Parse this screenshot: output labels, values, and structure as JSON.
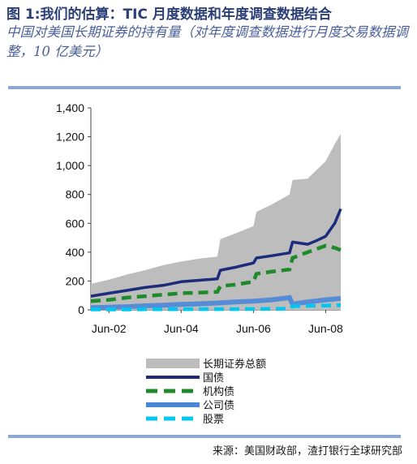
{
  "title": "图 1:我们的估算：TIC 月度数据和年度调查数据结合",
  "subtitle": "中国对美国长期证券的持有量（对年度调查数据进行月度交易数据调整，10 亿美元）",
  "source": "来源：美国财政部，渣打银行全球研究部",
  "chart_data": {
    "type": "area",
    "x_start": "2001-12",
    "x_end": "2008-11",
    "x_ticks": [
      "Jun-02",
      "Jun-04",
      "Jun-06",
      "Jun-08"
    ],
    "x_tick_dates": [
      "2002-06",
      "2004-06",
      "2006-06",
      "2008-06"
    ],
    "ylim": [
      0,
      1400
    ],
    "y_ticks": [
      0,
      200,
      400,
      600,
      800,
      1000,
      1200,
      1400
    ],
    "y_tick_labels": [
      "0",
      "200",
      "400",
      "600",
      "800",
      "1,000",
      "1,200",
      "1,400"
    ],
    "legend": [
      "长期证券总额",
      "国债",
      "机构债",
      "公司债",
      "股票"
    ],
    "series": [
      {
        "name": "长期证券总额",
        "style": "area",
        "color": "#bdbdbd",
        "x": [
          "2001-12",
          "2002-06",
          "2002-12",
          "2003-06",
          "2003-12",
          "2004-06",
          "2004-12",
          "2005-06",
          "2005-07",
          "2005-12",
          "2006-06",
          "2006-07",
          "2006-12",
          "2007-06",
          "2007-07",
          "2007-12",
          "2008-06",
          "2008-09",
          "2008-11"
        ],
        "y": [
          180,
          210,
          245,
          275,
          310,
          335,
          355,
          370,
          490,
          530,
          580,
          680,
          730,
          800,
          900,
          910,
          1030,
          1150,
          1220
        ]
      },
      {
        "name": "国债",
        "style": "line",
        "color": "#1c2b7a",
        "x": [
          "2001-12",
          "2002-06",
          "2002-12",
          "2003-06",
          "2003-12",
          "2004-06",
          "2004-12",
          "2005-06",
          "2005-07",
          "2005-12",
          "2006-06",
          "2006-07",
          "2006-12",
          "2007-06",
          "2007-07",
          "2007-12",
          "2008-03",
          "2008-06",
          "2008-09",
          "2008-11"
        ],
        "y": [
          95,
          115,
          135,
          155,
          170,
          195,
          205,
          215,
          275,
          295,
          325,
          360,
          375,
          395,
          470,
          455,
          480,
          510,
          600,
          700
        ]
      },
      {
        "name": "机构债",
        "style": "dashed",
        "color": "#1f8a2a",
        "x": [
          "2001-12",
          "2002-06",
          "2002-12",
          "2003-06",
          "2003-12",
          "2004-06",
          "2004-12",
          "2005-06",
          "2005-07",
          "2005-12",
          "2006-06",
          "2006-07",
          "2006-12",
          "2007-06",
          "2007-07",
          "2007-12",
          "2008-06",
          "2008-09",
          "2008-11"
        ],
        "y": [
          60,
          70,
          85,
          95,
          105,
          115,
          120,
          125,
          165,
          175,
          195,
          250,
          265,
          280,
          360,
          400,
          445,
          430,
          415
        ]
      },
      {
        "name": "公司债",
        "style": "band",
        "color": "#4a86d8",
        "x": [
          "2001-12",
          "2002-06",
          "2002-12",
          "2003-06",
          "2003-12",
          "2004-06",
          "2004-12",
          "2005-06",
          "2005-12",
          "2006-06",
          "2006-12",
          "2007-06",
          "2007-07",
          "2007-12",
          "2008-06",
          "2008-11"
        ],
        "y": [
          15,
          18,
          22,
          28,
          32,
          38,
          42,
          48,
          55,
          60,
          70,
          85,
          40,
          55,
          70,
          80
        ]
      },
      {
        "name": "股票",
        "style": "dashed",
        "color": "#00c8f0",
        "x": [
          "2001-12",
          "2002-06",
          "2002-12",
          "2003-06",
          "2003-12",
          "2004-06",
          "2004-12",
          "2005-06",
          "2005-12",
          "2006-06",
          "2006-12",
          "2007-06",
          "2007-07",
          "2007-12",
          "2008-06",
          "2008-11"
        ],
        "y": [
          3,
          3,
          3,
          4,
          4,
          4,
          5,
          5,
          5,
          6,
          7,
          8,
          25,
          28,
          30,
          32
        ]
      }
    ]
  }
}
